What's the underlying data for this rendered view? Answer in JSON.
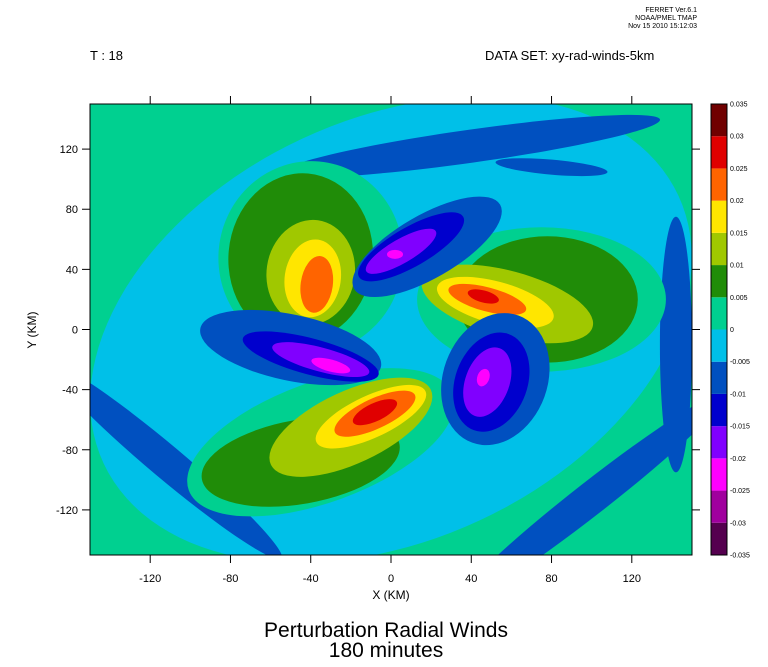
{
  "header": {
    "program": "FERRET Ver.6.1",
    "org": "NOAA/PMEL TMAP",
    "date": "Nov 15 2010 15:12:03"
  },
  "chart_data": {
    "type": "contour",
    "title": "Perturbation Radial Winds",
    "subtitle": "180 minutes",
    "time_label": "T : 18",
    "dataset_label": "DATA SET: xy-rad-winds-5km",
    "x_label": "X (KM)",
    "y_label": "Y (KM)",
    "xlim": [
      -150,
      150
    ],
    "ylim": [
      -150,
      150
    ],
    "xticks": [
      -120,
      -80,
      -40,
      0,
      40,
      80,
      120
    ],
    "yticks": [
      -120,
      -80,
      -40,
      0,
      40,
      80,
      120
    ],
    "levels": [
      -0.035,
      -0.03,
      -0.025,
      -0.02,
      -0.015,
      -0.01,
      -0.005,
      0,
      0.005,
      0.01,
      0.015,
      0.02,
      0.025,
      0.03,
      0.035
    ],
    "colors": [
      "#55004f",
      "#a0009e",
      "#ff00ff",
      "#8000ff",
      "#0000cd",
      "#0050c0",
      "#00c0e8",
      "#00d090",
      "#208c08",
      "#a0c800",
      "#ffe600",
      "#ff6400",
      "#e00000",
      "#700000"
    ]
  }
}
